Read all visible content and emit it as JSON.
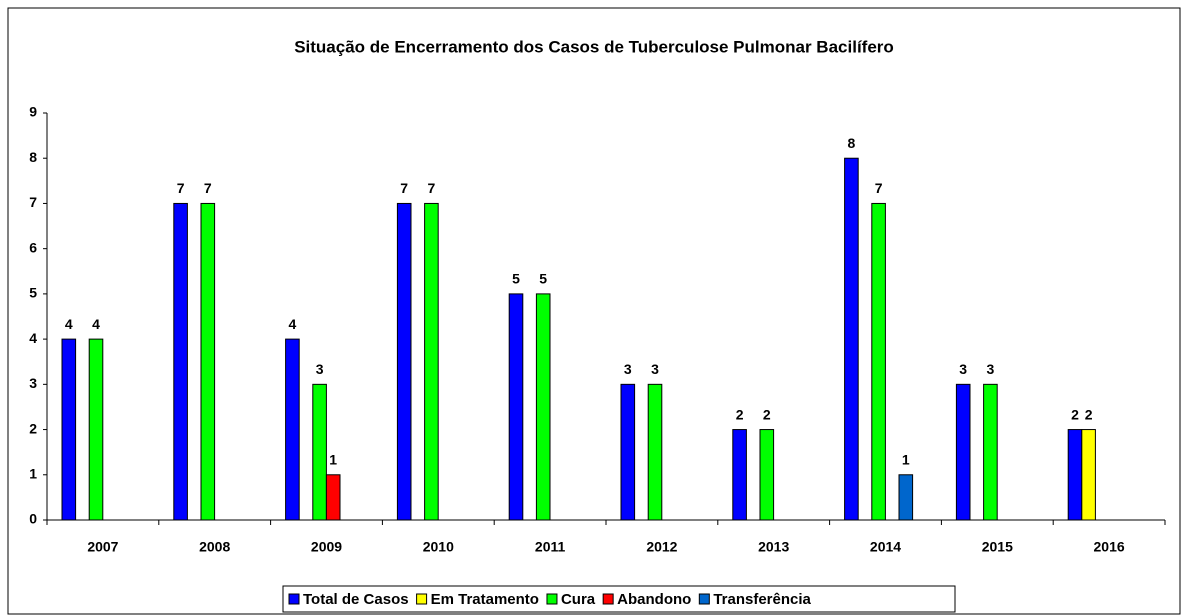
{
  "chart_data": {
    "type": "bar",
    "title": "Situação de Encerramento dos Casos de Tuberculose Pulmonar Bacilífero",
    "categories": [
      "2007",
      "2008",
      "2009",
      "2010",
      "2011",
      "2012",
      "2013",
      "2014",
      "2015",
      "2016"
    ],
    "series": [
      {
        "name": "Total de Casos",
        "color": "#0000ff",
        "values": [
          4,
          7,
          4,
          7,
          5,
          3,
          2,
          8,
          3,
          2
        ]
      },
      {
        "name": "Em Tratamento",
        "color": "#ffff00",
        "values": [
          null,
          null,
          null,
          null,
          null,
          null,
          null,
          null,
          null,
          2
        ]
      },
      {
        "name": "Cura",
        "color": "#00ff00",
        "values": [
          4,
          7,
          3,
          7,
          5,
          3,
          2,
          7,
          3,
          null
        ]
      },
      {
        "name": "Abandono",
        "color": "#ff0000",
        "values": [
          null,
          null,
          1,
          null,
          null,
          null,
          null,
          null,
          null,
          null
        ]
      },
      {
        "name": "Transferência",
        "color": "#0066cc",
        "values": [
          null,
          null,
          null,
          null,
          null,
          null,
          null,
          1,
          null,
          null
        ]
      }
    ],
    "ylim": [
      0,
      9
    ],
    "yticks": [
      0,
      1,
      2,
      3,
      4,
      5,
      6,
      7,
      8,
      9
    ],
    "grid": false,
    "legend": "bottom"
  }
}
